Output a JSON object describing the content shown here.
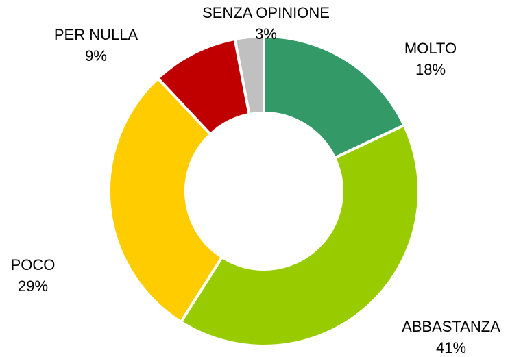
{
  "chart_data": {
    "type": "donut",
    "categories": [
      "MOLTO",
      "ABBASTANZA",
      "POCO",
      "PER NULLA",
      "SENZA OPINIONE"
    ],
    "values": [
      18,
      41,
      29,
      9,
      3
    ],
    "value_labels": [
      "18%",
      "41%",
      "29%",
      "9%",
      "3%"
    ],
    "colors": [
      "#339966",
      "#99cc00",
      "#ffcc00",
      "#c00000",
      "#c0c0c0"
    ]
  }
}
